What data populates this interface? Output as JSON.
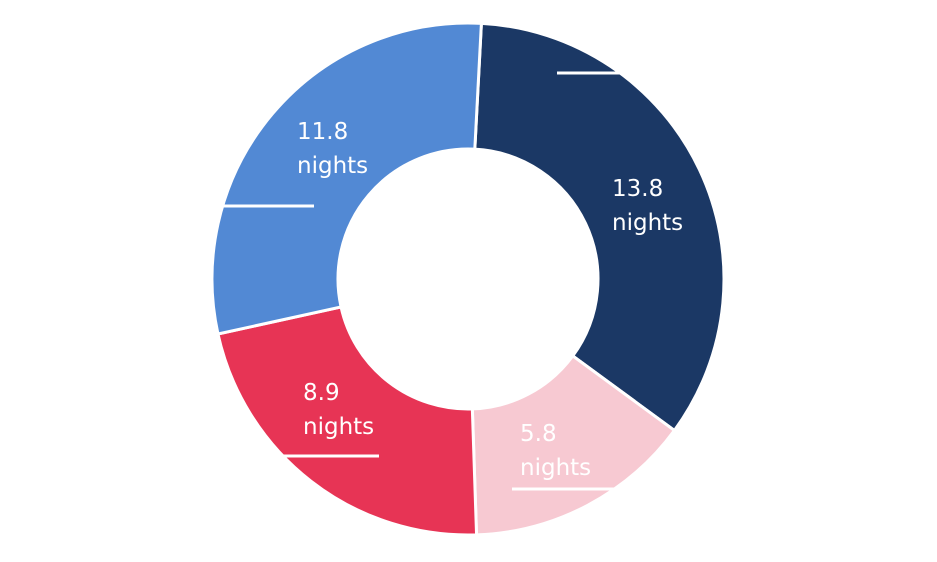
{
  "chart_data": {
    "type": "pie",
    "variant": "donut",
    "unit": "nights",
    "start_angle_deg": 3,
    "slices": [
      {
        "value": 13.8,
        "value_text": "13.8",
        "unit_text": "nights",
        "color": "#1b3865"
      },
      {
        "value": 5.8,
        "value_text": "5.8",
        "unit_text": "nights",
        "color": "#f7c9d2"
      },
      {
        "value": 8.9,
        "value_text": "8.9",
        "unit_text": "nights",
        "color": "#e73455"
      },
      {
        "value": 11.8,
        "value_text": "11.8",
        "unit_text": "nights",
        "color": "#5289d4"
      }
    ],
    "separator_color": "#ffffff"
  }
}
